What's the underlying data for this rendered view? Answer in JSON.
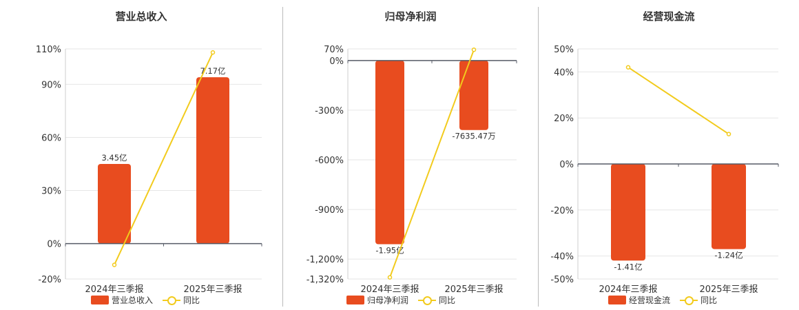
{
  "colors": {
    "bar": "#e84c1f",
    "line": "#f2cb1d",
    "axis": "#555a66",
    "grid": "#e6e6e6"
  },
  "chart_data": [
    {
      "type": "bar",
      "title": "营业总收入",
      "categories": [
        "2024年三季报",
        "2025年三季报"
      ],
      "series": [
        {
          "name": "营业总收入",
          "type": "bar",
          "values": [
            45,
            94
          ],
          "labels": [
            "3.45亿",
            "7.17亿"
          ]
        },
        {
          "name": "同比",
          "type": "line",
          "values": [
            -12,
            108
          ]
        }
      ],
      "yticks": [
        110,
        90,
        60,
        30,
        0,
        -20
      ],
      "ytick_labels": [
        "110%",
        "90%",
        "60%",
        "30%",
        "0%",
        "-20%"
      ],
      "ylim": [
        -20,
        110
      ],
      "grid": true,
      "legend": [
        "营业总收入",
        "同比"
      ]
    },
    {
      "type": "bar",
      "title": "归母净利润",
      "categories": [
        "2024年三季报",
        "2025年三季报"
      ],
      "series": [
        {
          "name": "归母净利润",
          "type": "bar",
          "values": [
            -1110,
            -420
          ],
          "labels": [
            "-1.95亿",
            "-7635.47万"
          ]
        },
        {
          "name": "同比",
          "type": "line",
          "values": [
            -1310,
            65
          ]
        }
      ],
      "yticks": [
        70,
        0,
        -300,
        -600,
        -900,
        -1200,
        -1320
      ],
      "ytick_labels": [
        "70%",
        "0%",
        "-300%",
        "-600%",
        "-900%",
        "-1,200%",
        "-1,320%"
      ],
      "ylim": [
        -1320,
        70
      ],
      "grid": true,
      "legend": [
        "归母净利润",
        "同比"
      ]
    },
    {
      "type": "bar",
      "title": "经营现金流",
      "categories": [
        "2024年三季报",
        "2025年三季报"
      ],
      "series": [
        {
          "name": "经营现金流",
          "type": "bar",
          "values": [
            -42,
            -37
          ],
          "labels": [
            "-1.41亿",
            "-1.24亿"
          ]
        },
        {
          "name": "同比",
          "type": "line",
          "values": [
            42,
            13
          ]
        }
      ],
      "yticks": [
        50,
        40,
        20,
        0,
        -20,
        -40,
        -50
      ],
      "ytick_labels": [
        "50%",
        "40%",
        "20%",
        "0%",
        "-20%",
        "-40%",
        "-50%"
      ],
      "ylim": [
        -50,
        50
      ],
      "grid": true,
      "legend": [
        "经营现金流",
        "同比"
      ]
    }
  ]
}
